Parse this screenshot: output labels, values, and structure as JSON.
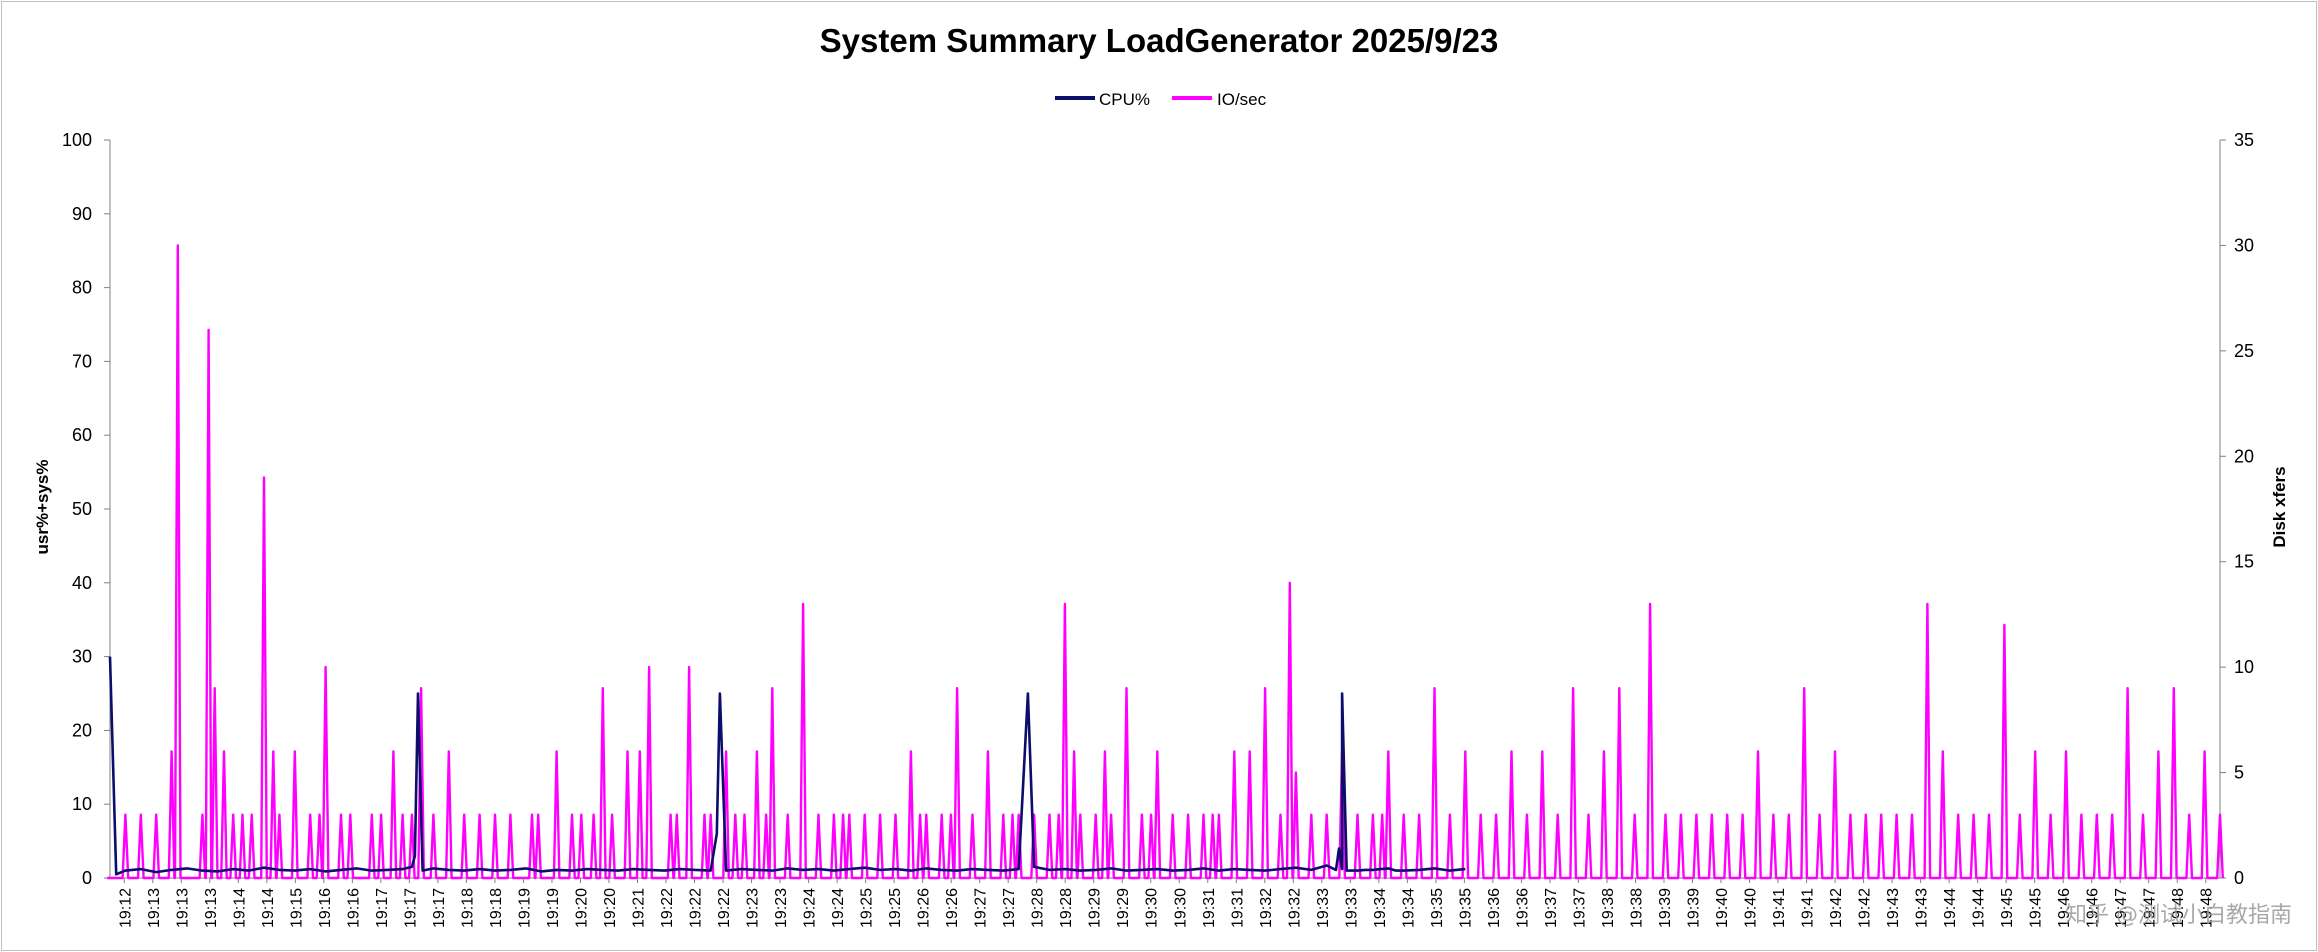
{
  "chart_data": {
    "type": "line",
    "title": "System Summary LoadGenerator  2025/9/23",
    "y_left_label": "usr%+sys%",
    "y_right_label": "Disk xfers",
    "y_left_ticks": [
      "0",
      "10",
      "20",
      "30",
      "40",
      "50",
      "60",
      "70",
      "80",
      "90",
      "100"
    ],
    "y_right_ticks": [
      "0",
      "5",
      "10",
      "15",
      "20",
      "25",
      "30",
      "35"
    ],
    "y_left_range": [
      0,
      100
    ],
    "y_right_range": [
      0,
      35
    ],
    "x_tick_labels": [
      "19:12",
      "19:13",
      "19:13",
      "19:13",
      "19:14",
      "19:14",
      "19:15",
      "19:16",
      "19:16",
      "19:17",
      "19:17",
      "19:17",
      "19:18",
      "19:18",
      "19:19",
      "19:19",
      "19:20",
      "19:20",
      "19:21",
      "19:22",
      "19:22",
      "19:22",
      "19:23",
      "19:23",
      "19:24",
      "19:24",
      "19:25",
      "19:25",
      "19:26",
      "19:26",
      "19:27",
      "19:27",
      "19:28",
      "19:28",
      "19:29",
      "19:29",
      "19:30",
      "19:30",
      "19:31",
      "19:31",
      "19:32",
      "19:32",
      "19:33",
      "19:33",
      "19:34",
      "19:34",
      "19:35",
      "19:35",
      "19:36",
      "19:36",
      "19:37",
      "19:37",
      "19:38",
      "19:38",
      "19:39",
      "19:39",
      "19:40",
      "19:40",
      "19:41",
      "19:41",
      "19:42",
      "19:42",
      "19:43",
      "19:43",
      "19:44",
      "19:44",
      "19:45",
      "19:45",
      "19:46",
      "19:46",
      "19:47",
      "19:47",
      "19:48",
      "19:48"
    ],
    "legend": "top-center",
    "grid": false,
    "series": [
      {
        "name": "CPU%",
        "axis": "left",
        "color": "#0d0d6b",
        "points": [
          [
            0,
            30
          ],
          [
            0.4,
            0.5
          ],
          [
            1,
            1
          ],
          [
            2,
            1.2
          ],
          [
            3,
            0.8
          ],
          [
            4,
            1.1
          ],
          [
            5,
            1.3
          ],
          [
            6,
            1
          ],
          [
            7,
            0.9
          ],
          [
            8,
            1.2
          ],
          [
            9,
            1
          ],
          [
            10,
            1.4
          ],
          [
            11,
            1.1
          ],
          [
            12,
            1
          ],
          [
            13,
            1.2
          ],
          [
            14,
            0.9
          ],
          [
            15,
            1.1
          ],
          [
            16,
            1.3
          ],
          [
            17,
            1
          ],
          [
            18,
            1.1
          ],
          [
            19,
            1.2
          ],
          [
            19.6,
            1.5
          ],
          [
            19.8,
            3
          ],
          [
            20,
            25
          ],
          [
            20.3,
            1
          ],
          [
            21,
            1.3
          ],
          [
            22,
            1.1
          ],
          [
            23,
            1
          ],
          [
            24,
            1.2
          ],
          [
            25,
            1
          ],
          [
            26,
            1.1
          ],
          [
            27,
            1.3
          ],
          [
            28,
            0.9
          ],
          [
            29,
            1.1
          ],
          [
            30,
            1
          ],
          [
            31,
            1.2
          ],
          [
            32,
            1.1
          ],
          [
            33,
            1
          ],
          [
            34,
            1.2
          ],
          [
            35,
            1.1
          ],
          [
            36,
            1
          ],
          [
            37,
            1.2
          ],
          [
            38,
            1.1
          ],
          [
            39,
            1
          ],
          [
            39.4,
            6
          ],
          [
            39.6,
            25
          ],
          [
            40,
            1
          ],
          [
            41,
            1.2
          ],
          [
            42,
            1.1
          ],
          [
            43,
            1
          ],
          [
            44,
            1.3
          ],
          [
            45,
            1.1
          ],
          [
            46,
            1.2
          ],
          [
            47,
            1
          ],
          [
            48,
            1.2
          ],
          [
            49,
            1.4
          ],
          [
            50,
            1.1
          ],
          [
            51,
            1.2
          ],
          [
            52,
            1
          ],
          [
            53,
            1.3
          ],
          [
            54,
            1.1
          ],
          [
            55,
            1
          ],
          [
            56,
            1.2
          ],
          [
            57,
            1.1
          ],
          [
            58,
            1
          ],
          [
            59,
            1.2
          ],
          [
            59.6,
            25
          ],
          [
            60,
            1.5
          ],
          [
            61,
            1.1
          ],
          [
            62,
            1.2
          ],
          [
            63,
            1
          ],
          [
            64,
            1.1
          ],
          [
            65,
            1.3
          ],
          [
            66,
            1
          ],
          [
            67,
            1.1
          ],
          [
            68,
            1.2
          ],
          [
            69,
            1
          ],
          [
            70,
            1.1
          ],
          [
            71,
            1.3
          ],
          [
            72,
            1
          ],
          [
            73,
            1.2
          ],
          [
            74,
            1.1
          ],
          [
            75,
            1
          ],
          [
            76,
            1.2
          ],
          [
            77,
            1.4
          ],
          [
            78,
            1.1
          ],
          [
            79,
            1.7
          ],
          [
            80,
            1.2
          ],
          [
            81,
            1
          ],
          [
            82,
            1.1
          ],
          [
            83,
            1.3
          ],
          [
            84,
            1
          ],
          [
            85,
            1.1
          ],
          [
            86,
            1.3
          ],
          [
            87,
            1
          ],
          [
            88,
            1.2
          ],
          [
            79.6,
            1.1
          ],
          [
            79.8,
            4
          ],
          [
            80,
            25
          ],
          [
            80.3,
            1
          ],
          [
            81.5,
            1.1
          ],
          [
            82.5,
            1.2
          ],
          [
            83.5,
            1
          ]
        ]
      },
      {
        "name": "IO/sec",
        "axis": "right",
        "color": "#ff00ff",
        "points": [
          [
            0,
            0
          ],
          [
            1,
            3
          ],
          [
            2,
            3
          ],
          [
            2.6,
            0
          ],
          [
            3,
            3
          ],
          [
            4,
            6
          ],
          [
            4.4,
            30
          ],
          [
            5,
            0
          ],
          [
            6,
            3
          ],
          [
            6.4,
            26
          ],
          [
            6.8,
            9
          ],
          [
            7.4,
            6
          ],
          [
            8,
            3
          ],
          [
            8.6,
            3
          ],
          [
            9.2,
            3
          ],
          [
            10,
            19
          ],
          [
            10.6,
            6
          ],
          [
            11,
            3
          ],
          [
            12,
            6
          ],
          [
            13,
            3
          ],
          [
            13.6,
            3
          ],
          [
            14,
            10
          ],
          [
            15,
            3
          ],
          [
            15.6,
            3
          ],
          [
            17,
            3
          ],
          [
            17.6,
            3
          ],
          [
            18.4,
            6
          ],
          [
            19,
            3
          ],
          [
            19.6,
            3
          ],
          [
            20.2,
            9
          ],
          [
            21,
            3
          ],
          [
            22,
            6
          ],
          [
            23,
            3
          ],
          [
            24,
            3
          ],
          [
            25,
            3
          ],
          [
            26,
            3
          ],
          [
            27.4,
            3
          ],
          [
            27.8,
            3
          ],
          [
            29,
            6
          ],
          [
            30,
            3
          ],
          [
            30.6,
            3
          ],
          [
            31.4,
            3
          ],
          [
            32,
            9
          ],
          [
            32.6,
            3
          ],
          [
            33.6,
            6
          ],
          [
            34.4,
            6
          ],
          [
            35,
            10
          ],
          [
            36.4,
            3
          ],
          [
            36.8,
            3
          ],
          [
            37.6,
            10
          ],
          [
            38.6,
            3
          ],
          [
            39,
            3
          ],
          [
            40,
            6
          ],
          [
            40.6,
            3
          ],
          [
            41.2,
            3
          ],
          [
            42,
            6
          ],
          [
            42.6,
            3
          ],
          [
            43,
            9
          ],
          [
            44,
            3
          ],
          [
            45,
            13
          ],
          [
            46,
            3
          ],
          [
            47,
            3
          ],
          [
            47.6,
            3
          ],
          [
            48,
            3
          ],
          [
            49,
            3
          ],
          [
            50,
            3
          ],
          [
            51,
            3
          ],
          [
            52,
            6
          ],
          [
            52.6,
            3
          ],
          [
            53,
            3
          ],
          [
            54,
            3
          ],
          [
            54.6,
            3
          ],
          [
            55,
            9
          ],
          [
            56,
            3
          ],
          [
            57,
            6
          ],
          [
            58,
            3
          ],
          [
            58.6,
            3
          ],
          [
            59,
            3
          ],
          [
            60,
            3
          ],
          [
            61,
            3
          ],
          [
            61.6,
            3
          ],
          [
            62,
            13
          ],
          [
            62.6,
            6
          ],
          [
            63,
            3
          ],
          [
            64,
            3
          ],
          [
            64.6,
            6
          ],
          [
            65,
            3
          ],
          [
            66,
            9
          ],
          [
            67,
            3
          ],
          [
            67.6,
            3
          ],
          [
            68,
            6
          ],
          [
            69,
            3
          ],
          [
            70,
            3
          ],
          [
            71,
            3
          ],
          [
            71.6,
            3
          ],
          [
            72,
            3
          ],
          [
            73,
            6
          ],
          [
            74,
            6
          ],
          [
            75,
            9
          ],
          [
            76,
            3
          ],
          [
            76.6,
            14
          ],
          [
            77,
            5
          ],
          [
            78,
            3
          ],
          [
            79,
            3
          ],
          [
            80,
            6
          ],
          [
            81,
            3
          ],
          [
            82,
            3
          ],
          [
            82.6,
            3
          ],
          [
            83,
            6
          ],
          [
            84,
            3
          ],
          [
            85,
            3
          ],
          [
            86,
            9
          ],
          [
            87,
            3
          ],
          [
            88,
            6
          ],
          [
            89,
            3
          ],
          [
            90,
            3
          ],
          [
            91,
            6
          ],
          [
            92,
            3
          ],
          [
            93,
            6
          ],
          [
            94,
            3
          ],
          [
            95,
            9
          ],
          [
            96,
            3
          ],
          [
            97,
            6
          ],
          [
            98,
            9
          ],
          [
            99,
            3
          ],
          [
            100,
            13
          ],
          [
            101,
            3
          ],
          [
            102,
            3
          ],
          [
            103,
            3
          ],
          [
            104,
            3
          ],
          [
            105,
            3
          ],
          [
            106,
            3
          ],
          [
            107,
            6
          ],
          [
            108,
            3
          ],
          [
            109,
            3
          ],
          [
            110,
            9
          ],
          [
            111,
            3
          ],
          [
            112,
            6
          ],
          [
            113,
            3
          ],
          [
            114,
            3
          ],
          [
            115,
            3
          ],
          [
            116,
            3
          ],
          [
            117,
            3
          ],
          [
            118,
            13
          ],
          [
            119,
            6
          ],
          [
            120,
            3
          ],
          [
            121,
            3
          ],
          [
            122,
            3
          ],
          [
            123,
            12
          ],
          [
            124,
            3
          ],
          [
            125,
            6
          ],
          [
            126,
            3
          ],
          [
            127,
            6
          ],
          [
            128,
            3
          ],
          [
            129,
            3
          ],
          [
            130,
            3
          ],
          [
            131,
            9
          ],
          [
            132,
            3
          ],
          [
            133,
            6
          ],
          [
            134,
            9
          ],
          [
            135,
            3
          ],
          [
            136,
            6
          ],
          [
            137,
            3
          ]
        ]
      }
    ]
  },
  "watermark": "知乎 @测试小白教指南"
}
